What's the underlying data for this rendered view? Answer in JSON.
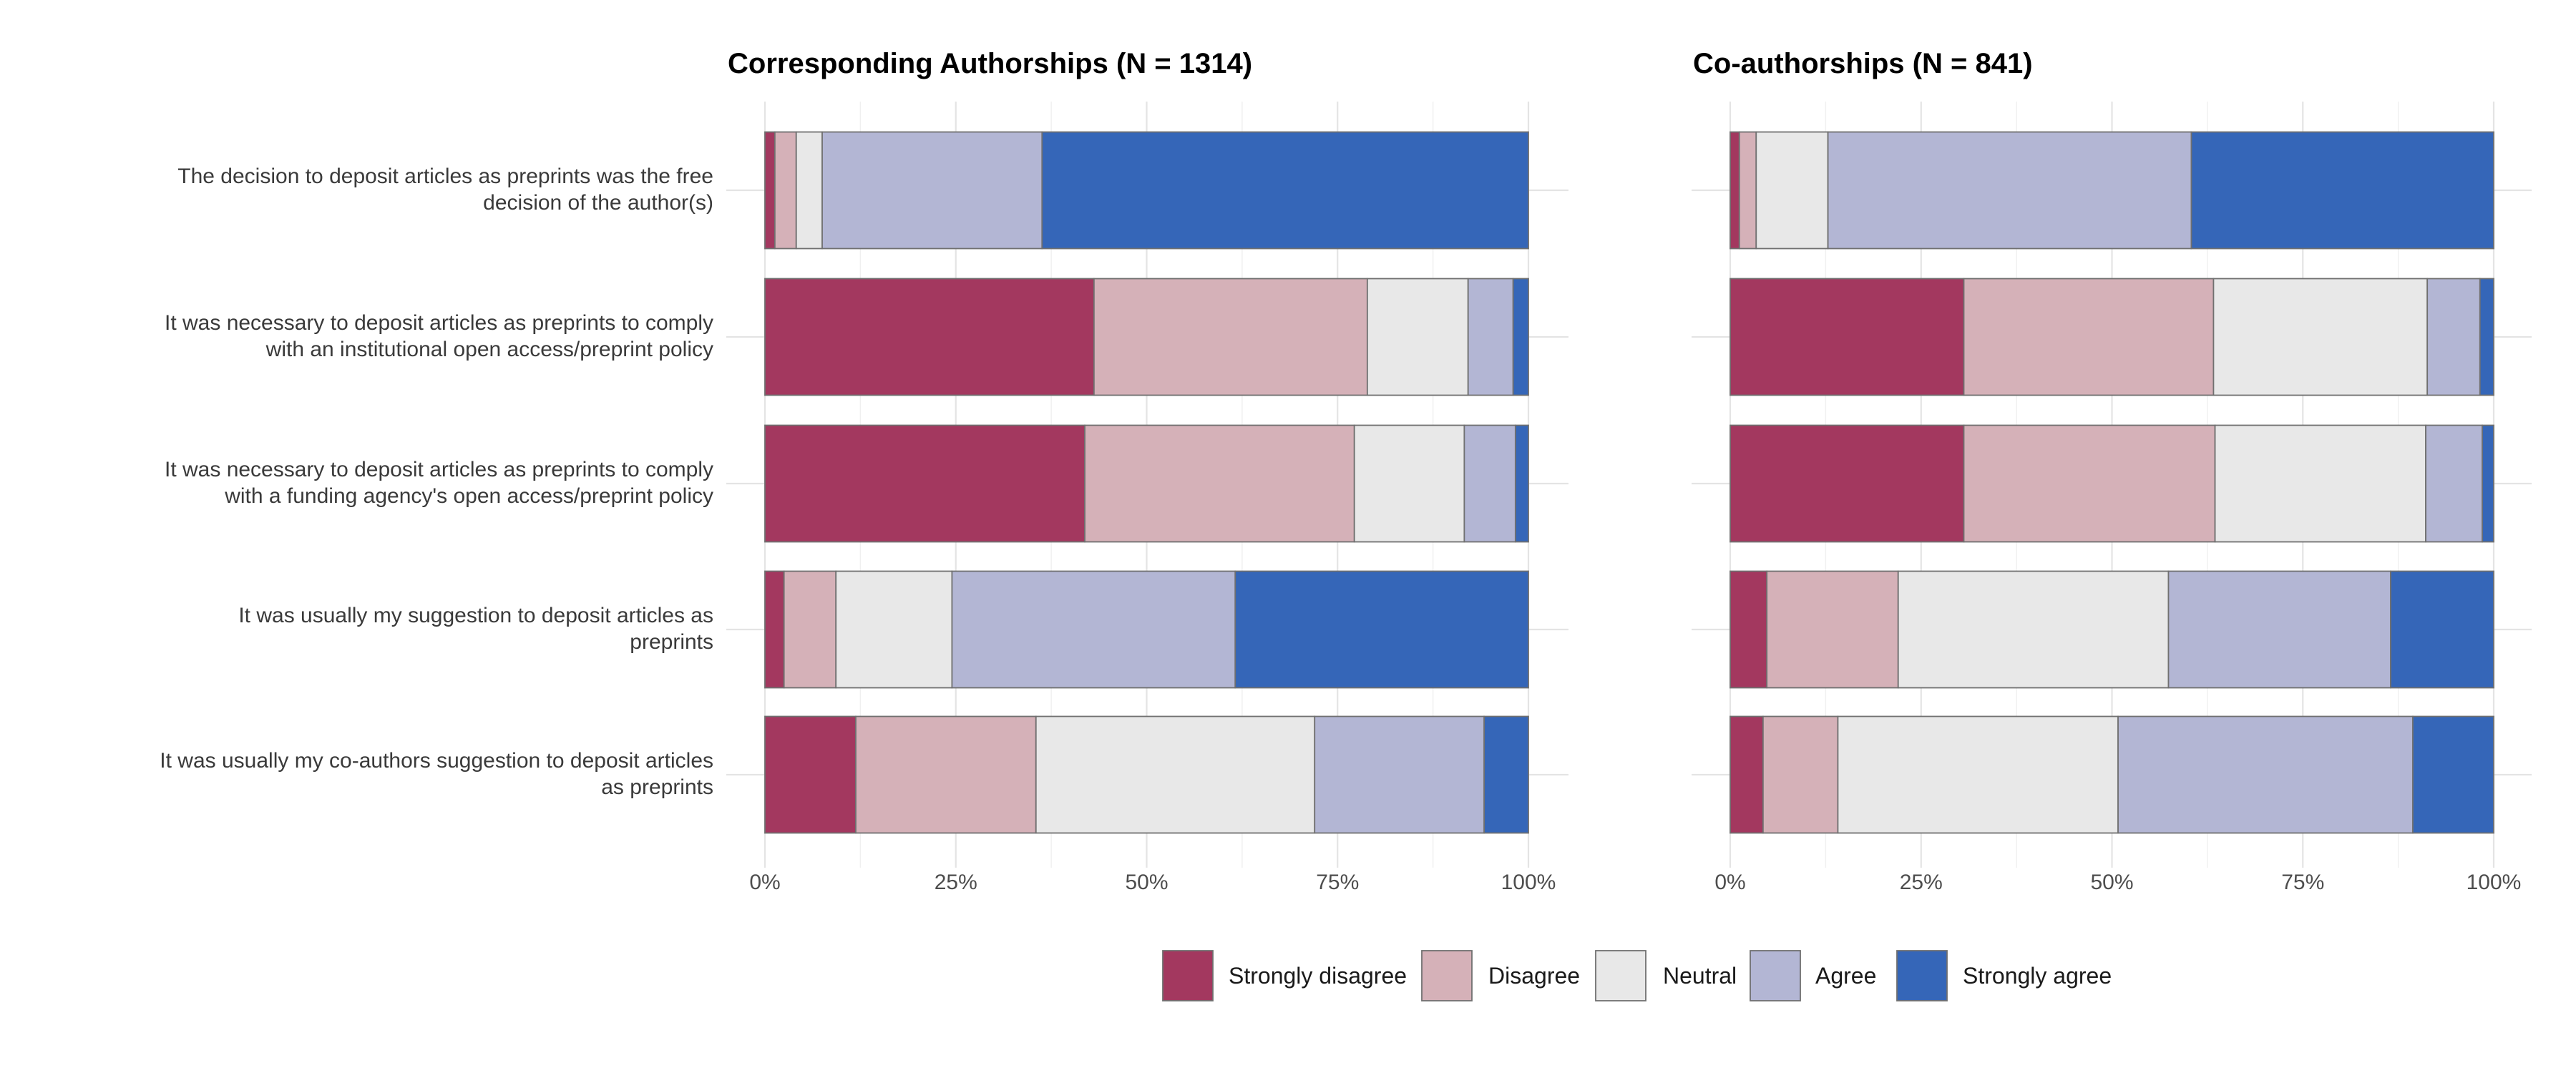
{
  "chart_data": {
    "type": "bar",
    "orientation": "horizontal",
    "stacked": true,
    "percent_scale": true,
    "legend_position": "bottom",
    "grid": true,
    "xlim": [
      0,
      100
    ],
    "x_ticks": [
      "0%",
      "25%",
      "50%",
      "75%",
      "100%"
    ],
    "x_tick_values": [
      0,
      25,
      50,
      75,
      100
    ],
    "categories": [
      [
        "The decision to deposit articles as preprints was the free",
        "decision of the author(s)"
      ],
      [
        "It was necessary to deposit articles as preprints to comply",
        "with an institutional open access/preprint policy"
      ],
      [
        "It was necessary to deposit articles as preprints to comply",
        "with a funding agency's open access/preprint policy"
      ],
      [
        "It was usually my suggestion to deposit articles as",
        "preprints"
      ],
      [
        "It was usually my co-authors suggestion to deposit articles",
        "as preprints"
      ]
    ],
    "legend": [
      {
        "name": "Strongly disagree",
        "color": "#a3385f"
      },
      {
        "name": "Disagree",
        "color": "#d5b1b8"
      },
      {
        "name": "Neutral",
        "color": "#e8e8e8"
      },
      {
        "name": "Agree",
        "color": "#b3b6d4"
      },
      {
        "name": "Strongly agree",
        "color": "#3566b8"
      }
    ],
    "panels": [
      {
        "title": "Corresponding Authorships (N = 1314)",
        "values": [
          [
            1.3,
            2.8,
            3.4,
            28.8,
            63.7
          ],
          [
            43.1,
            35.8,
            13.2,
            5.9,
            2.0
          ],
          [
            41.9,
            35.3,
            14.4,
            6.7,
            1.7
          ],
          [
            2.5,
            6.8,
            15.2,
            37.1,
            38.4
          ],
          [
            11.9,
            23.6,
            36.5,
            22.2,
            5.8
          ]
        ]
      },
      {
        "title": "Co-authorships (N = 841)",
        "values": [
          [
            1.2,
            2.2,
            9.4,
            47.6,
            39.6
          ],
          [
            30.6,
            32.7,
            28.0,
            6.9,
            1.8
          ],
          [
            30.6,
            32.9,
            27.6,
            7.4,
            1.5
          ],
          [
            4.8,
            17.2,
            35.4,
            29.1,
            13.5
          ],
          [
            4.3,
            9.8,
            36.7,
            38.6,
            10.6
          ]
        ]
      }
    ]
  }
}
